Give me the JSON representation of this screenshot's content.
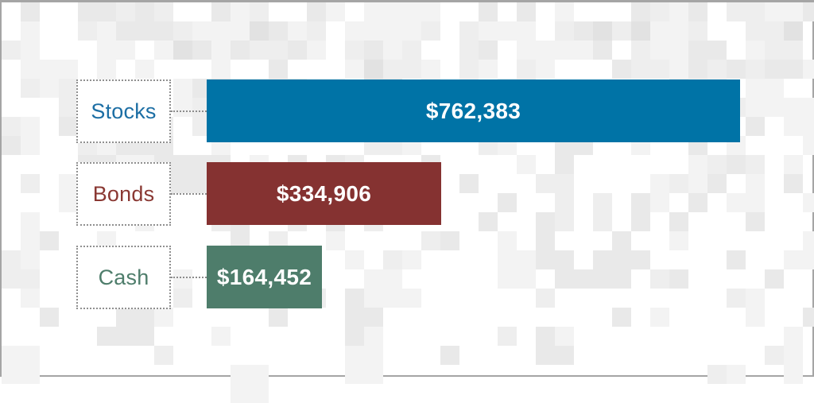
{
  "chart_data": {
    "type": "bar",
    "orientation": "horizontal",
    "title": "",
    "categories": [
      "Stocks",
      "Bonds",
      "Cash"
    ],
    "values": [
      762383,
      334906,
      164452
    ],
    "value_labels": [
      "$762,383",
      "$334,906",
      "$164,452"
    ],
    "xlim": [
      0,
      762383
    ],
    "grid": false,
    "legend": "none",
    "bar_colors": [
      "#0073a6",
      "#853231",
      "#4e7d6b"
    ],
    "category_label_colors": [
      "#1c6ea4",
      "#8a3833",
      "#4e7d6b"
    ],
    "value_label_color": "#ffffff"
  },
  "rows": [
    {
      "label": "Stocks",
      "value": 762383,
      "value_label": "$762,383",
      "bar_color": "#0073a6",
      "label_color": "#1c6ea4"
    },
    {
      "label": "Bonds",
      "value": 334906,
      "value_label": "$334,906",
      "bar_color": "#853231",
      "label_color": "#8a3833"
    },
    {
      "label": "Cash",
      "value": 164452,
      "value_label": "$164,452",
      "bar_color": "#4e7d6b",
      "label_color": "#4e7d6b"
    }
  ]
}
